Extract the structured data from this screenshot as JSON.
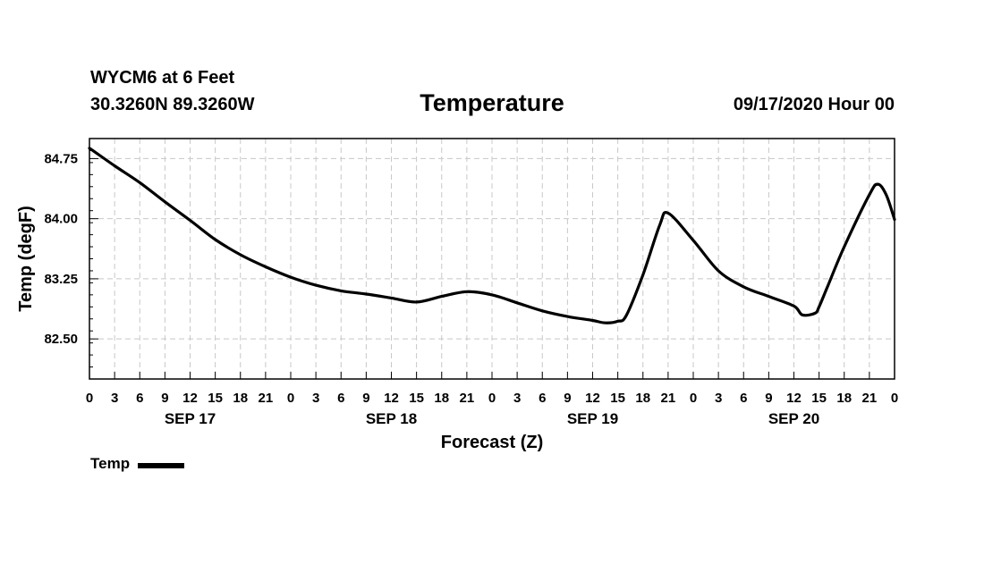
{
  "header": {
    "station": "WYCM6 at 6 Feet",
    "coords": "30.3260N 89.3260W",
    "title": "Temperature",
    "runtime": "09/17/2020 Hour 00"
  },
  "legend": {
    "label": "Temp"
  },
  "chart_data": {
    "type": "line",
    "title": "Temperature",
    "xlabel": "Forecast (Z)",
    "ylabel": "Temp (degF)",
    "xlim": [
      0,
      96
    ],
    "ylim": [
      82.0,
      85.0
    ],
    "yticks": [
      82.5,
      83.25,
      84.0,
      84.75
    ],
    "ytick_labels": [
      "82.50",
      "83.25",
      "84.00",
      "84.75"
    ],
    "xtick_labels": [
      "0",
      "3",
      "6",
      "9",
      "12",
      "15",
      "18",
      "21",
      "0",
      "3",
      "6",
      "9",
      "12",
      "15",
      "18",
      "21",
      "0",
      "3",
      "6",
      "9",
      "12",
      "15",
      "18",
      "21",
      "0",
      "3",
      "6",
      "9",
      "12",
      "15",
      "18",
      "21",
      "0"
    ],
    "date_labels": [
      {
        "hour": 12,
        "text": "SEP 17"
      },
      {
        "hour": 36,
        "text": "SEP 18"
      },
      {
        "hour": 60,
        "text": "SEP 19"
      },
      {
        "hour": 84,
        "text": "SEP 20"
      }
    ],
    "grid": true,
    "legend_position": "bottom-left",
    "series": [
      {
        "name": "Temp",
        "color": "#000000",
        "x": [
          0,
          3,
          6,
          9,
          12,
          15,
          18,
          21,
          24,
          27,
          30,
          33,
          36,
          39,
          42,
          45,
          48,
          51,
          54,
          57,
          60,
          61.5,
          63,
          64,
          66,
          68,
          69,
          72,
          75,
          78,
          81,
          84,
          85,
          86.5,
          87,
          88,
          90,
          93,
          94,
          95,
          96
        ],
        "y": [
          84.88,
          84.66,
          84.45,
          84.21,
          83.98,
          83.74,
          83.55,
          83.4,
          83.27,
          83.17,
          83.1,
          83.06,
          83.01,
          82.96,
          83.03,
          83.09,
          83.05,
          82.95,
          82.85,
          82.78,
          82.73,
          82.7,
          82.72,
          82.79,
          83.3,
          83.92,
          84.07,
          83.73,
          83.35,
          83.15,
          83.03,
          82.91,
          82.8,
          82.82,
          82.9,
          83.15,
          83.65,
          84.3,
          84.43,
          84.3,
          83.99
        ]
      }
    ]
  }
}
